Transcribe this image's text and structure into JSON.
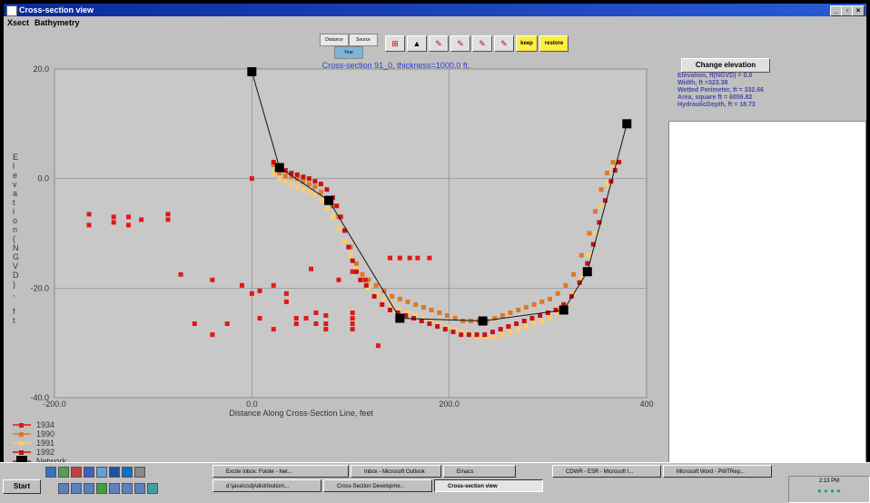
{
  "window": {
    "title": "Cross-section view",
    "controls": [
      "_",
      "▫",
      "×"
    ]
  },
  "menu": {
    "items": [
      "Xsect",
      "Bathymetry"
    ]
  },
  "toolbar": {
    "mode_labels": [
      "Distance",
      "Source",
      "Year"
    ],
    "tool_icons": [
      "grid-icon",
      "arrow-up-icon",
      "pen-icon",
      "pen-icon",
      "pen-icon",
      "pen-icon"
    ],
    "keep_label": "keep",
    "restore_label": "restore"
  },
  "info": {
    "change_elevation_label": "Change elevation",
    "elevation": "Elevation, ft(NGVD) = 0.0",
    "width": "Width, ft        =323.38",
    "wetted": "Wetted Perimeter, ft = 332.66",
    "area": "Area, square ft    = 6059.82",
    "hydraulic": "HydraulicDepth, ft  = 18.73"
  },
  "chart_data": {
    "type": "scatter",
    "title": "Cross-section 91_0, thickness=1000.0 ft.",
    "xlabel": "Distance Along Cross-Section Line, feet",
    "ylabel": "Elevation(NGVD), ft",
    "xlim": [
      -200,
      400
    ],
    "ylim": [
      -40,
      20
    ],
    "x_ticks": [
      "-200.0",
      "0.0",
      "200.0",
      "400"
    ],
    "y_ticks": [
      "20.0",
      "0.0",
      "-20.0",
      "-40.0"
    ],
    "grid": true,
    "legend_position": "bottom-left",
    "series": [
      {
        "name": "1934",
        "color": "#e01818",
        "points": [
          [
            -165,
            -6.5
          ],
          [
            -165,
            -8.5
          ],
          [
            -140,
            -7
          ],
          [
            -140,
            -8
          ],
          [
            -125,
            -7
          ],
          [
            -125,
            -8.5
          ],
          [
            -112,
            -7.5
          ],
          [
            -85,
            -6.5
          ],
          [
            -85,
            -7.5
          ],
          [
            -72,
            -17.5
          ],
          [
            -58,
            -26.5
          ],
          [
            -40,
            -18.5
          ],
          [
            -40,
            -28.5
          ],
          [
            -25,
            -26.5
          ],
          [
            -10,
            -19.5
          ],
          [
            0,
            0
          ],
          [
            0,
            -21
          ],
          [
            8,
            -20.5
          ],
          [
            8,
            -25.5
          ],
          [
            22,
            -19.5
          ],
          [
            22,
            -27.5
          ],
          [
            35,
            -21
          ],
          [
            35,
            -22.5
          ],
          [
            45,
            -25.5
          ],
          [
            45,
            -26.5
          ],
          [
            55,
            -25.5
          ],
          [
            60,
            -16.5
          ],
          [
            65,
            -24.5
          ],
          [
            65,
            -26.5
          ],
          [
            75,
            -25
          ],
          [
            75,
            -26.5
          ],
          [
            75,
            -27.5
          ],
          [
            88,
            -18.5
          ],
          [
            102,
            -17
          ],
          [
            102,
            -24.5
          ],
          [
            102,
            -25.5
          ],
          [
            102,
            -26.5
          ],
          [
            102,
            -27.5
          ],
          [
            115,
            -18.5
          ],
          [
            128,
            -30.5
          ],
          [
            140,
            -14.5
          ],
          [
            150,
            -14.5
          ],
          [
            160,
            -14.5
          ],
          [
            168,
            -14.5
          ],
          [
            180,
            -14.5
          ]
        ]
      },
      {
        "name": "1990",
        "color": "#e07820",
        "points": [
          [
            22,
            2.5
          ],
          [
            28,
            1
          ],
          [
            34,
            0.5
          ],
          [
            40,
            0.3
          ],
          [
            46,
            0
          ],
          [
            52,
            -0.5
          ],
          [
            58,
            -1
          ],
          [
            64,
            -1.5
          ],
          [
            70,
            -2.5
          ],
          [
            76,
            -3.5
          ],
          [
            82,
            -5
          ],
          [
            88,
            -7
          ],
          [
            94,
            -9.5
          ],
          [
            100,
            -12.5
          ],
          [
            106,
            -15.5
          ],
          [
            112,
            -17.5
          ],
          [
            118,
            -18.5
          ],
          [
            126,
            -19.5
          ],
          [
            134,
            -20.5
          ],
          [
            142,
            -21.5
          ],
          [
            150,
            -22
          ],
          [
            158,
            -22.5
          ],
          [
            166,
            -23
          ],
          [
            174,
            -23.5
          ],
          [
            182,
            -24
          ],
          [
            190,
            -24.5
          ],
          [
            198,
            -25
          ],
          [
            206,
            -25.5
          ],
          [
            214,
            -26
          ],
          [
            222,
            -26
          ],
          [
            230,
            -26
          ],
          [
            238,
            -26
          ],
          [
            246,
            -25.5
          ],
          [
            254,
            -25
          ],
          [
            262,
            -24.5
          ],
          [
            270,
            -24
          ],
          [
            278,
            -23.5
          ],
          [
            286,
            -23
          ],
          [
            294,
            -22.5
          ],
          [
            302,
            -22
          ],
          [
            310,
            -21
          ],
          [
            318,
            -19.5
          ],
          [
            326,
            -17.5
          ],
          [
            334,
            -14
          ],
          [
            342,
            -10
          ],
          [
            348,
            -6
          ],
          [
            354,
            -2
          ],
          [
            360,
            1
          ],
          [
            366,
            3
          ]
        ]
      },
      {
        "name": "1991",
        "color": "#ffcc66",
        "points": [
          [
            22,
            1
          ],
          [
            28,
            0
          ],
          [
            34,
            -0.5
          ],
          [
            40,
            -1
          ],
          [
            46,
            -1.5
          ],
          [
            52,
            -2
          ],
          [
            58,
            -2.5
          ],
          [
            64,
            -3
          ],
          [
            70,
            -4
          ],
          [
            76,
            -5.5
          ],
          [
            82,
            -7
          ],
          [
            88,
            -9
          ],
          [
            94,
            -11.5
          ],
          [
            100,
            -14
          ],
          [
            106,
            -16.5
          ],
          [
            112,
            -18.5
          ],
          [
            118,
            -20
          ],
          [
            126,
            -21
          ],
          [
            134,
            -22
          ],
          [
            142,
            -23
          ],
          [
            150,
            -24
          ],
          [
            158,
            -24.5
          ],
          [
            166,
            -25
          ],
          [
            174,
            -25.5
          ],
          [
            182,
            -26
          ],
          [
            190,
            -26.5
          ],
          [
            198,
            -27
          ],
          [
            206,
            -27.5
          ],
          [
            214,
            -28
          ],
          [
            222,
            -28.5
          ],
          [
            230,
            -29
          ],
          [
            238,
            -29
          ],
          [
            246,
            -29
          ],
          [
            254,
            -28.5
          ],
          [
            262,
            -28
          ],
          [
            270,
            -27.5
          ],
          [
            278,
            -27
          ],
          [
            286,
            -26.5
          ],
          [
            294,
            -26
          ],
          [
            302,
            -25.5
          ],
          [
            310,
            -24.5
          ],
          [
            318,
            -23
          ],
          [
            326,
            -21
          ],
          [
            334,
            -18
          ],
          [
            342,
            -14
          ],
          [
            348,
            -10
          ],
          [
            354,
            -5
          ],
          [
            360,
            -1
          ],
          [
            366,
            2
          ]
        ]
      },
      {
        "name": "1992",
        "color": "#cc1010",
        "points": [
          [
            22,
            3
          ],
          [
            28,
            2
          ],
          [
            34,
            1.5
          ],
          [
            40,
            1
          ],
          [
            46,
            0.7
          ],
          [
            52,
            0.3
          ],
          [
            58,
            0
          ],
          [
            64,
            -0.5
          ],
          [
            70,
            -1
          ],
          [
            76,
            -2
          ],
          [
            82,
            -3.5
          ],
          [
            86,
            -5
          ],
          [
            90,
            -7
          ],
          [
            94,
            -9.5
          ],
          [
            98,
            -12.5
          ],
          [
            102,
            -15
          ],
          [
            106,
            -17
          ],
          [
            110,
            -18.5
          ],
          [
            116,
            -19.5
          ],
          [
            124,
            -21.5
          ],
          [
            132,
            -23
          ],
          [
            140,
            -24
          ],
          [
            148,
            -24.5
          ],
          [
            156,
            -25
          ],
          [
            164,
            -25.5
          ],
          [
            172,
            -26
          ],
          [
            180,
            -26.5
          ],
          [
            188,
            -27
          ],
          [
            196,
            -27.5
          ],
          [
            204,
            -28
          ],
          [
            212,
            -28.5
          ],
          [
            220,
            -28.5
          ],
          [
            228,
            -28.5
          ],
          [
            236,
            -28.5
          ],
          [
            244,
            -28
          ],
          [
            252,
            -27.5
          ],
          [
            260,
            -27
          ],
          [
            268,
            -26.5
          ],
          [
            276,
            -26
          ],
          [
            284,
            -25.5
          ],
          [
            292,
            -25
          ],
          [
            300,
            -24.5
          ],
          [
            308,
            -24
          ],
          [
            316,
            -23
          ],
          [
            324,
            -21.5
          ],
          [
            332,
            -19
          ],
          [
            340,
            -15.5
          ],
          [
            346,
            -12
          ],
          [
            352,
            -8
          ],
          [
            358,
            -4
          ],
          [
            364,
            -0.5
          ],
          [
            368,
            1.5
          ],
          [
            372,
            3
          ]
        ]
      },
      {
        "name": "Network",
        "color": "#000000",
        "points": [
          [
            0,
            19.5
          ],
          [
            28,
            2
          ],
          [
            78,
            -4
          ],
          [
            150,
            -25.5
          ],
          [
            234,
            -26
          ],
          [
            316,
            -24
          ],
          [
            340,
            -17
          ],
          [
            380,
            10
          ]
        ]
      }
    ]
  },
  "taskbar": {
    "start_label": "Start",
    "tasks_row1": [
      "Excite Inbox: Folder - Net...",
      "Inbox - Microsoft Outlook",
      "Emacs",
      "CDWR - ESR - Microsoft I...",
      "Microsoft Word - PWTRep..."
    ],
    "tasks_row2": [
      "d:\\java\\csdp\\distribution\\...",
      "Cross-Section Developme...",
      "Cross-section view"
    ],
    "clock": "2:13 PM"
  }
}
